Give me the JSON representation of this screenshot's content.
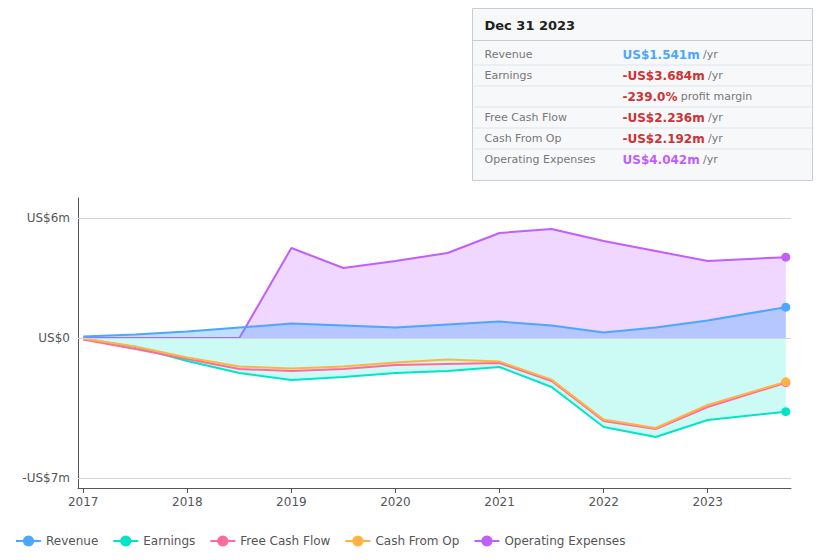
{
  "chart_data": {
    "type": "line",
    "x": [
      2017,
      2017.5,
      2018,
      2018.5,
      2019,
      2019.5,
      2020,
      2020.5,
      2021,
      2021.5,
      2022,
      2022.5,
      2023,
      2023.75
    ],
    "xlim": [
      2016.95,
      2023.8
    ],
    "xticks": [
      2017,
      2018,
      2019,
      2020,
      2021,
      2022,
      2023
    ],
    "ylim": [
      -7.5,
      7.0
    ],
    "yticks": [
      {
        "value": 6,
        "label": "US$6m"
      },
      {
        "value": 0,
        "label": "US$0"
      },
      {
        "value": -7,
        "label": "-US$7m"
      }
    ],
    "grid": true,
    "legend": "lower left",
    "series": [
      {
        "name": "Revenue",
        "color": "#4da6ff",
        "values": [
          0.08,
          0.18,
          0.32,
          0.52,
          0.72,
          0.62,
          0.52,
          0.68,
          0.82,
          0.62,
          0.28,
          0.52,
          0.88,
          1.541
        ]
      },
      {
        "name": "Earnings",
        "color": "#00e5c8",
        "values": [
          -0.04,
          -0.45,
          -1.15,
          -1.75,
          -2.1,
          -1.95,
          -1.75,
          -1.65,
          -1.45,
          -2.45,
          -4.45,
          -4.95,
          -4.1,
          -3.684
        ]
      },
      {
        "name": "Free Cash Flow",
        "color": "#ff6b9d",
        "values": [
          -0.08,
          -0.55,
          -1.05,
          -1.55,
          -1.65,
          -1.55,
          -1.35,
          -1.3,
          -1.25,
          -2.15,
          -4.15,
          -4.55,
          -3.45,
          -2.236
        ]
      },
      {
        "name": "Cash From Op",
        "color": "#ffb347",
        "values": [
          -0.02,
          -0.42,
          -0.98,
          -1.42,
          -1.52,
          -1.42,
          -1.22,
          -1.08,
          -1.18,
          -2.08,
          -4.08,
          -4.5,
          -3.35,
          -2.192
        ]
      },
      {
        "name": "Operating Expenses",
        "color": "#bf5fff",
        "values": [
          0.0,
          0.0,
          0.0,
          0.0,
          4.5,
          3.5,
          3.85,
          4.25,
          5.25,
          5.45,
          4.85,
          4.35,
          3.85,
          4.042
        ]
      }
    ],
    "annotations": [
      {
        "title": "Dec 31 2023",
        "rows": [
          {
            "label": "Revenue",
            "value": "US$1.541m",
            "color": "#4da6ff",
            "suffix": "/yr"
          },
          {
            "label": "Earnings",
            "value": "-US$3.684m",
            "color": "#cc3333",
            "suffix": "/yr"
          },
          {
            "value": "-239.0%",
            "color": "#cc3333",
            "suffix": "profit margin"
          },
          {
            "label": "Free Cash Flow",
            "value": "-US$2.236m",
            "color": "#cc3333",
            "suffix": "/yr"
          },
          {
            "label": "Cash From Op",
            "value": "-US$2.192m",
            "color": "#cc3333",
            "suffix": "/yr"
          },
          {
            "label": "Operating Expenses",
            "value": "US$4.042m",
            "color": "#bf5fff",
            "suffix": "/yr"
          }
        ]
      }
    ]
  }
}
